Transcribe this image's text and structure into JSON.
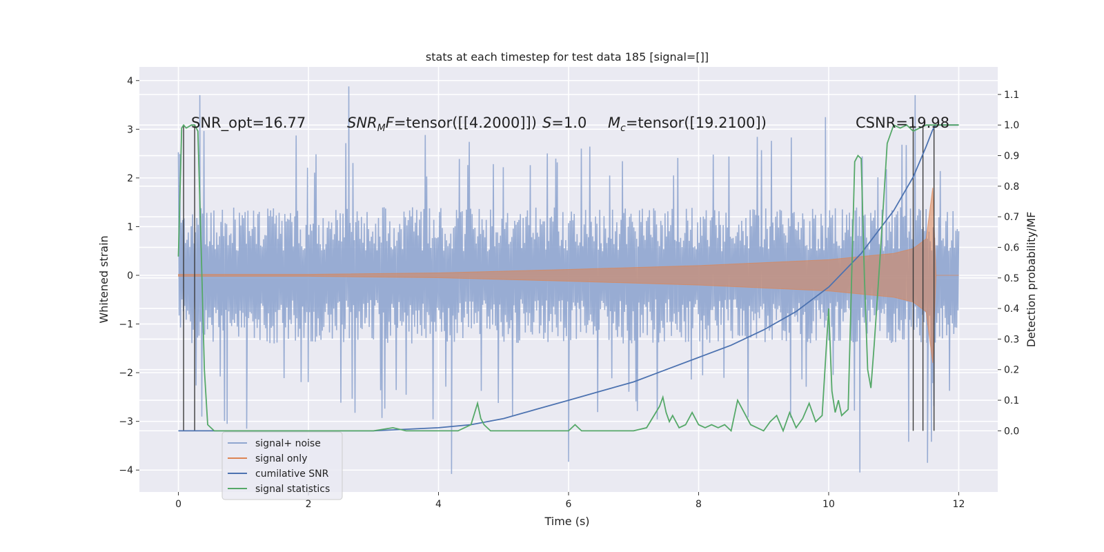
{
  "chart_data": {
    "type": "line",
    "title": "stats at each timestep for test data 185 [signal=[]]",
    "xlabel": "Time (s)",
    "ylabel_left": "Whitened strain",
    "ylabel_right": "Detection probability/MF",
    "xlim": [
      -0.6,
      12.6
    ],
    "ylim_left": [
      -4.45,
      4.28
    ],
    "ylim_right": [
      -0.2,
      1.19
    ],
    "x_ticks": [
      0,
      2,
      4,
      6,
      8,
      10,
      12
    ],
    "x_tick_labels": [
      "0",
      "2",
      "4",
      "6",
      "8",
      "10",
      "12"
    ],
    "y_left_ticks": [
      -4,
      -3,
      -2,
      -1,
      0,
      1,
      2,
      3,
      4
    ],
    "y_left_tick_labels": [
      "−4",
      "−3",
      "−2",
      "−1",
      "0",
      "1",
      "2",
      "3",
      "4"
    ],
    "y_right_ticks": [
      0.0,
      0.1,
      0.2,
      0.3,
      0.4,
      0.5,
      0.6,
      0.7,
      0.8,
      0.9,
      1.0,
      1.1
    ],
    "y_right_tick_labels": [
      "0.0",
      "0.1",
      "0.2",
      "0.3",
      "0.4",
      "0.5",
      "0.6",
      "0.7",
      "0.8",
      "0.9",
      "1.0",
      "1.1"
    ],
    "grid": true,
    "legend_position": "lower-left",
    "annotations": {
      "snr_opt": "SNR_opt=16.77",
      "snr_mf_name": "SNR",
      "snr_mf_sub": "M",
      "snr_mf_f": "F",
      "snr_mf_value": "=tensor([[4.2000]])",
      "s_name": "S",
      "s_value": "=1.0",
      "mc_name": "M",
      "mc_sub": "c",
      "mc_value": "=tensor([19.2100])",
      "csnr": "CSNR=19.98"
    },
    "series": [
      {
        "name": "signal+ noise",
        "axis": "left",
        "color": "#8fa5cf",
        "description": "noisy whitened strain, roughly ±1.5 with spikes to ±3.9",
        "x_range": [
          0,
          12
        ],
        "typical_abs": 1.4,
        "spikes": [
          [
            0.33,
            3.7
          ],
          [
            2.62,
            3.88
          ],
          [
            0.75,
            -3.05
          ],
          [
            1.05,
            -3.15
          ],
          [
            4.2,
            -4.08
          ],
          [
            6.0,
            -3.83
          ],
          [
            10.48,
            -4.05
          ],
          [
            11.33,
            3.7
          ],
          [
            11.52,
            -3.85
          ],
          [
            11.58,
            -3.42
          ],
          [
            11.23,
            -3.42
          ],
          [
            9.95,
            3.25
          ]
        ]
      },
      {
        "name": "signal only",
        "axis": "left",
        "color": "#dd8452",
        "description": "chirp envelope growing from ~0.02 to ~1.8 near merger at t≈11.6",
        "envelope": [
          [
            0,
            0.02
          ],
          [
            2,
            0.02
          ],
          [
            4,
            0.05
          ],
          [
            6,
            0.12
          ],
          [
            8,
            0.2
          ],
          [
            10,
            0.32
          ],
          [
            11,
            0.45
          ],
          [
            11.3,
            0.55
          ],
          [
            11.5,
            0.75
          ],
          [
            11.6,
            1.8
          ],
          [
            11.65,
            0.0
          ],
          [
            12,
            0.0
          ]
        ]
      },
      {
        "name": "cumilative SNR",
        "axis": "right",
        "color": "#4c72b0",
        "x": [
          0,
          3.0,
          4.0,
          4.5,
          5.0,
          5.5,
          6.0,
          6.5,
          7.0,
          7.5,
          8.0,
          8.5,
          9.0,
          9.5,
          10.0,
          10.5,
          11.0,
          11.3,
          11.5,
          11.6,
          11.65,
          12.0
        ],
        "values": [
          0.0,
          0.0,
          0.01,
          0.02,
          0.04,
          0.07,
          0.1,
          0.13,
          0.16,
          0.2,
          0.24,
          0.28,
          0.33,
          0.39,
          0.47,
          0.58,
          0.72,
          0.83,
          0.93,
          0.985,
          1.0,
          1.0
        ]
      },
      {
        "name": "signal statistics",
        "axis": "right",
        "color": "#55a868",
        "x": [
          0.0,
          0.05,
          0.08,
          0.12,
          0.2,
          0.25,
          0.3,
          0.35,
          0.4,
          0.45,
          0.55,
          0.7,
          1.0,
          1.5,
          2.0,
          2.5,
          3.0,
          3.3,
          3.5,
          4.0,
          4.3,
          4.5,
          4.6,
          4.65,
          4.7,
          4.8,
          5.0,
          5.5,
          6.0,
          6.1,
          6.2,
          7.0,
          7.2,
          7.4,
          7.45,
          7.5,
          7.55,
          7.6,
          7.7,
          7.8,
          7.9,
          8.0,
          8.1,
          8.2,
          8.3,
          8.4,
          8.5,
          8.6,
          8.7,
          8.8,
          8.9,
          9.0,
          9.1,
          9.2,
          9.3,
          9.4,
          9.5,
          9.6,
          9.7,
          9.8,
          9.9,
          10.0,
          10.05,
          10.1,
          10.15,
          10.2,
          10.3,
          10.4,
          10.45,
          10.5,
          10.55,
          10.6,
          10.65,
          10.7,
          10.75,
          10.8,
          10.9,
          11.0,
          11.1,
          11.2,
          11.3,
          11.4,
          11.5,
          11.6,
          11.7,
          12.0
        ],
        "values": [
          0.57,
          0.99,
          1.0,
          0.99,
          1.0,
          1.0,
          0.98,
          0.6,
          0.2,
          0.02,
          0.0,
          0.0,
          0.0,
          0.0,
          0.0,
          0.0,
          0.0,
          0.01,
          0.0,
          0.0,
          0.0,
          0.02,
          0.09,
          0.04,
          0.02,
          0.0,
          0.0,
          0.0,
          0.0,
          0.02,
          0.0,
          0.0,
          0.01,
          0.08,
          0.11,
          0.06,
          0.03,
          0.05,
          0.01,
          0.02,
          0.06,
          0.02,
          0.01,
          0.02,
          0.01,
          0.02,
          0.0,
          0.1,
          0.06,
          0.02,
          0.01,
          0.0,
          0.03,
          0.05,
          0.0,
          0.06,
          0.01,
          0.04,
          0.09,
          0.03,
          0.05,
          0.4,
          0.13,
          0.06,
          0.1,
          0.05,
          0.07,
          0.88,
          0.9,
          0.89,
          0.5,
          0.2,
          0.14,
          0.28,
          0.44,
          0.6,
          0.94,
          1.0,
          0.99,
          1.0,
          0.98,
          0.99,
          1.0,
          1.0,
          1.0,
          1.0
        ]
      },
      {
        "name": "",
        "axis": "right",
        "color": "#3a3a3a",
        "description": "vertical detection markers",
        "markers_x": [
          0.08,
          0.25,
          11.3,
          11.45,
          11.62
        ]
      }
    ]
  }
}
